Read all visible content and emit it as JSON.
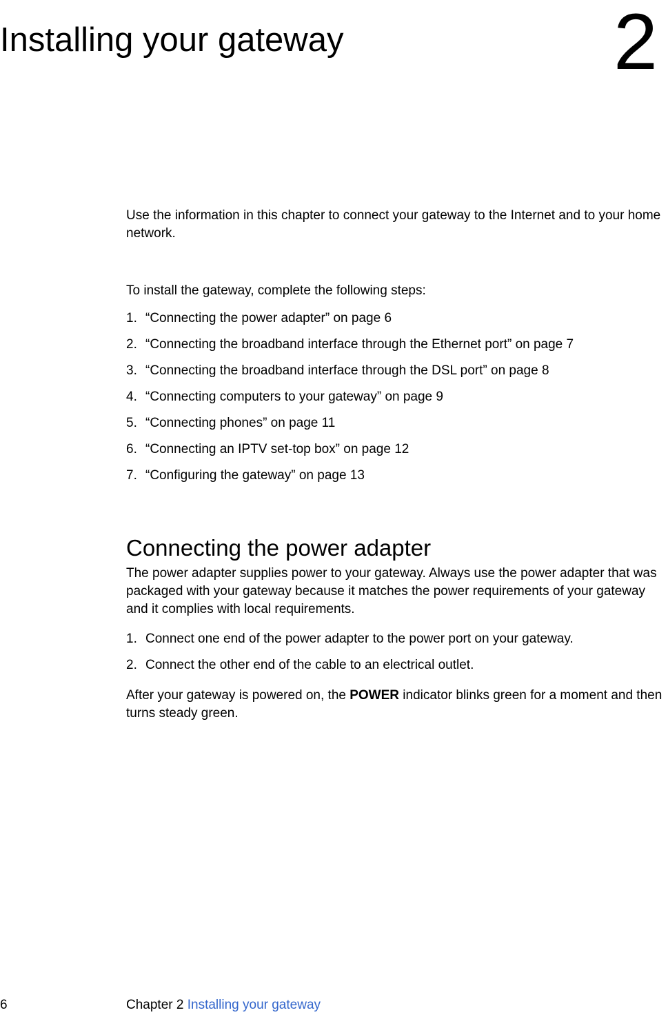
{
  "title": "Installing your gateway",
  "chapter_number": "2",
  "intro": "Use the information in this chapter to connect your gateway to the Internet and to your home network.",
  "steps_intro": "To install the gateway, complete the following steps:",
  "steps": [
    "“Connecting the power adapter” on page 6",
    "“Connecting the broadband interface through the Ethernet port” on page 7",
    "“Connecting the broadband interface through the DSL port” on page 8",
    "“Connecting computers to your gateway” on page 9",
    "“Connecting phones” on page 11",
    "“Connecting an IPTV set-top box” on page 12",
    "“Configuring the gateway” on page 13"
  ],
  "section": {
    "heading": "Connecting the power adapter",
    "body": "The power adapter supplies power to your gateway. Always use the power adapter that was packaged with your gateway because it matches the power requirements of your gateway and it complies with local requirements.",
    "steps": [
      "Connect one end of the power adapter to the power port on your gateway.",
      "Connect the other end of the cable to an electrical outlet."
    ],
    "note_before": "After your gateway is powered on, the ",
    "note_bold": "POWER",
    "note_after": " indicator blinks green for a moment and then turns steady green."
  },
  "footer": {
    "page_number": "6",
    "chapter_label": "Chapter 2  ",
    "chapter_title": "Installing your gateway"
  },
  "colors": {
    "text": "#000000",
    "link": "#3366cc",
    "background": "#ffffff"
  },
  "typography": {
    "title_fontsize": 49,
    "chapter_number_fontsize": 115,
    "body_fontsize": 19,
    "heading_fontsize": 33,
    "font_family": "Arial, Helvetica, sans-serif"
  }
}
